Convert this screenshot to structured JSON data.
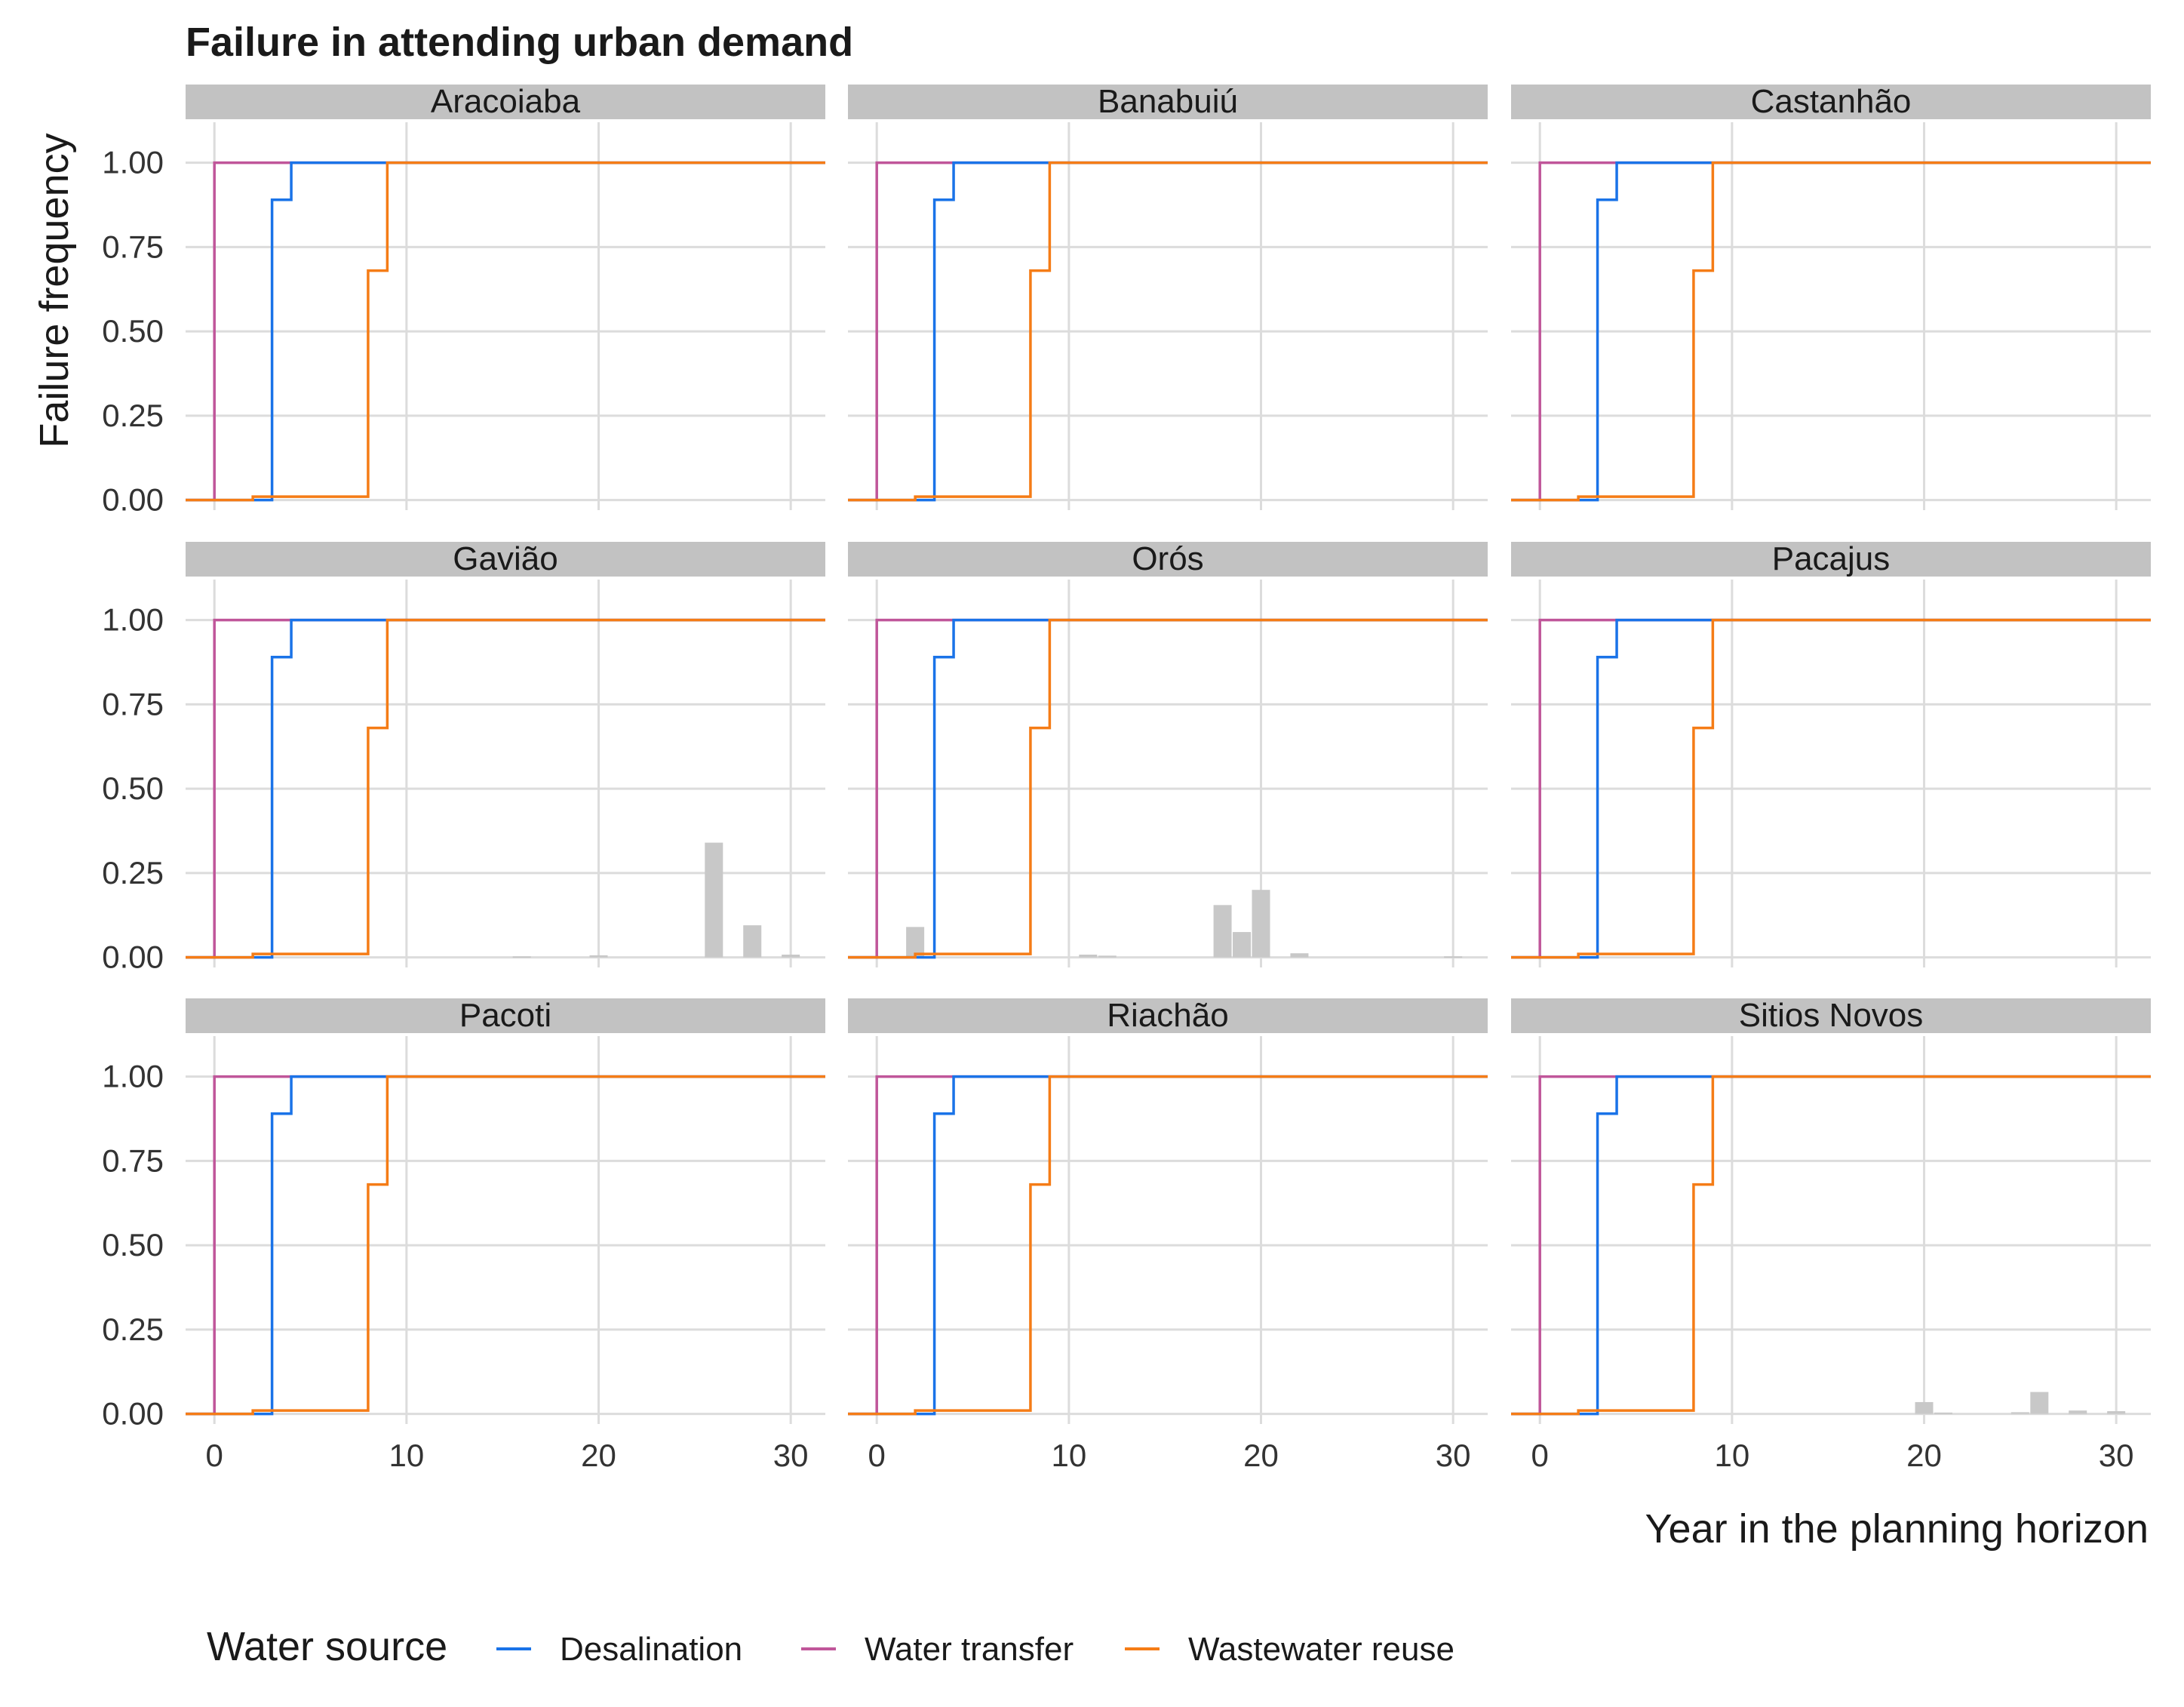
{
  "chart_data": {
    "type": "line",
    "title": "Failure in attending urban demand",
    "xlabel": "Year in the planning horizon",
    "ylabel": "Failure frequency",
    "xlim": [
      -1.5,
      31.8
    ],
    "ylim": [
      -0.03,
      1.12
    ],
    "x_ticks": [
      0,
      10,
      20,
      30
    ],
    "y_ticks": [
      0.0,
      0.25,
      0.5,
      0.75,
      1.0
    ],
    "y_tick_labels": [
      "0.00",
      "0.25",
      "0.50",
      "0.75",
      "1.00"
    ],
    "grid": true,
    "legend": {
      "title": "Water source",
      "position": "bottom-left",
      "items": [
        {
          "label": "Desalination",
          "color": "#1a73e8"
        },
        {
          "label": "Water transfer",
          "color": "#c0569a"
        },
        {
          "label": "Wastewater reuse",
          "color": "#f57c16"
        }
      ]
    },
    "series": [
      {
        "name": "Desalination",
        "color": "#1a73e8",
        "type": "step",
        "x": [
          -1.5,
          3,
          4,
          31.8
        ],
        "y": [
          0.0,
          0.89,
          1.0,
          1.0
        ]
      },
      {
        "name": "Water transfer",
        "color": "#c0569a",
        "type": "step",
        "x": [
          -1.5,
          0,
          31.8
        ],
        "y": [
          0.0,
          1.0,
          1.0
        ]
      },
      {
        "name": "Wastewater reuse",
        "color": "#f57c16",
        "type": "step",
        "x": [
          -1.5,
          2,
          8,
          9,
          31.8
        ],
        "y": [
          0.0,
          0.01,
          0.68,
          1.0,
          1.0
        ]
      }
    ],
    "bar_color": "#c8c8c8",
    "panels": [
      {
        "name": "Aracoiaba",
        "bars": []
      },
      {
        "name": "Banabuiú",
        "bars": []
      },
      {
        "name": "Castanhão",
        "bars": []
      },
      {
        "name": "Gavião",
        "bars": [
          {
            "x": 16,
            "y": 0.003
          },
          {
            "x": 20,
            "y": 0.006
          },
          {
            "x": 26,
            "y": 0.34
          },
          {
            "x": 28,
            "y": 0.095
          },
          {
            "x": 30,
            "y": 0.008
          }
        ]
      },
      {
        "name": "Orós",
        "bars": [
          {
            "x": 2,
            "y": 0.09
          },
          {
            "x": 11,
            "y": 0.008
          },
          {
            "x": 12,
            "y": 0.005
          },
          {
            "x": 18,
            "y": 0.155
          },
          {
            "x": 19,
            "y": 0.075
          },
          {
            "x": 20,
            "y": 0.2
          },
          {
            "x": 22,
            "y": 0.012
          },
          {
            "x": 30,
            "y": 0.003
          }
        ]
      },
      {
        "name": "Pacajus",
        "bars": []
      },
      {
        "name": "Pacoti",
        "bars": []
      },
      {
        "name": "Riachão",
        "bars": []
      },
      {
        "name": "Sitios Novos",
        "bars": [
          {
            "x": 20,
            "y": 0.035
          },
          {
            "x": 21,
            "y": 0.004
          },
          {
            "x": 25,
            "y": 0.005
          },
          {
            "x": 26,
            "y": 0.065
          },
          {
            "x": 28,
            "y": 0.01
          },
          {
            "x": 30,
            "y": 0.008
          }
        ]
      }
    ]
  }
}
